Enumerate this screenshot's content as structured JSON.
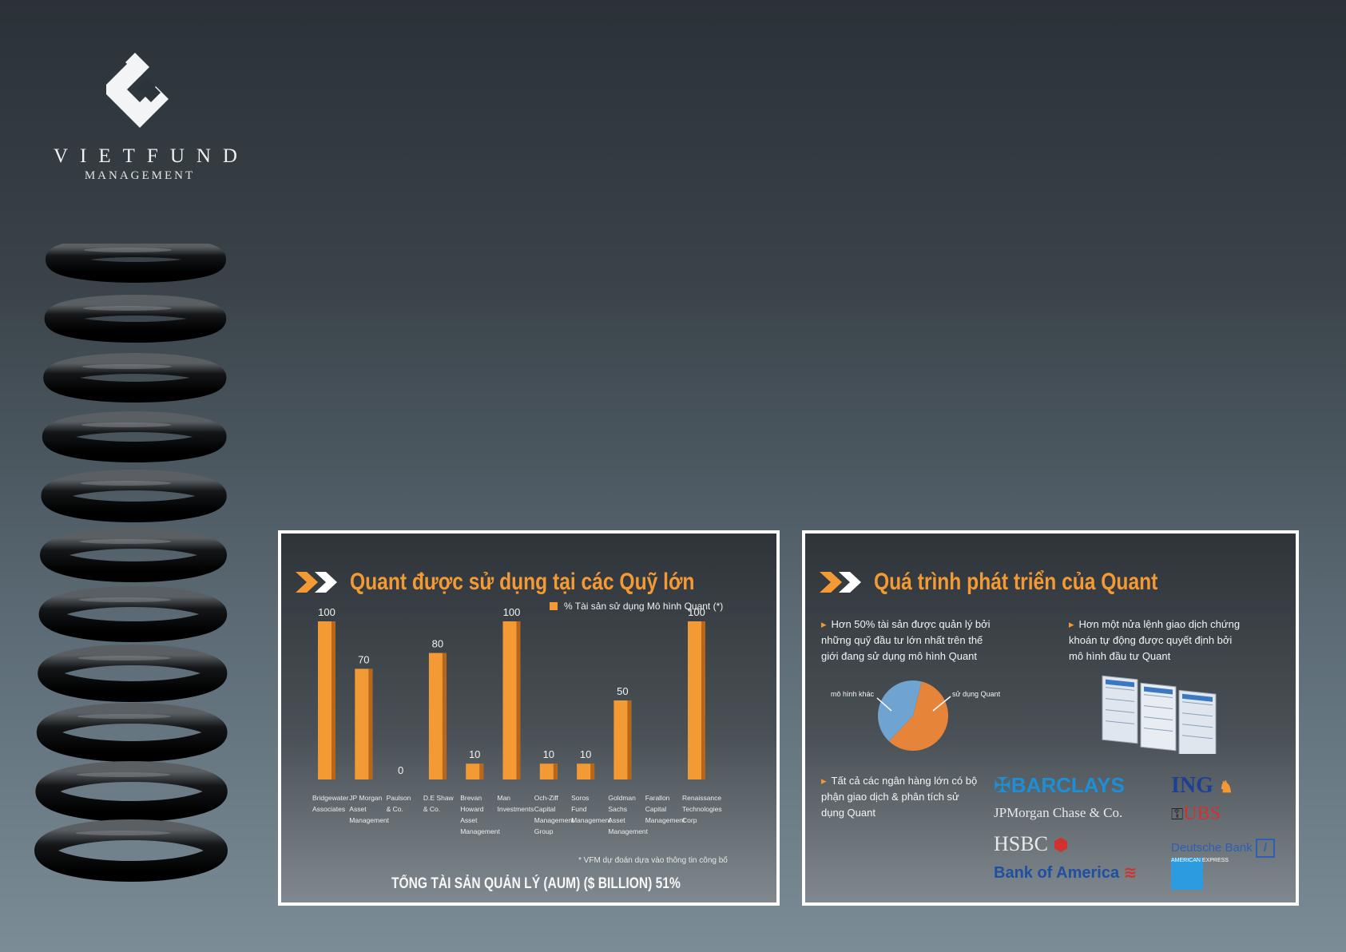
{
  "brand": {
    "name": "VIETFUND",
    "subtitle": "MANAGEMENT"
  },
  "left_panel": {
    "title": "Quant được sử dụng tại các Quỹ lớn",
    "legend": "% Tài sản sử dụng Mô hình Quant (*)",
    "footnote": "* VFM dự đoán dựa vào thông tin công bố",
    "total_label": "TỔNG TÀI SẢN QUẢN LÝ (AUM) ($ BILLION) 51%"
  },
  "chart_data": {
    "type": "bar",
    "categories": [
      [
        "Bridgewater",
        "Associates"
      ],
      [
        "JP Morgan",
        "Asset",
        "Management"
      ],
      [
        "Paulson",
        "& Co."
      ],
      [
        "D.E Shaw",
        "& Co."
      ],
      [
        "Brevan",
        "Howard",
        "Asset",
        "Management"
      ],
      [
        "Man",
        "Investments"
      ],
      [
        "Och-Ziff",
        "Capital",
        "Management",
        "Group"
      ],
      [
        "Soros",
        "Fund",
        "Management"
      ],
      [
        "Goldman",
        "Sachs",
        "Asset",
        "Management"
      ],
      [
        "Farallon",
        "Capital",
        "Management"
      ],
      [
        "Renaissance",
        "Technologies",
        "Corp"
      ]
    ],
    "values": [
      100,
      70,
      0,
      80,
      10,
      100,
      10,
      10,
      50,
      null,
      100
    ],
    "series": [
      {
        "name": "% Tài sản sử dụng Mô hình Quant (*)",
        "color": "#f39a34"
      }
    ],
    "ylim": [
      0,
      100
    ],
    "grid": false,
    "legend_position": "top-right"
  },
  "right_panel": {
    "title": "Quá trình phát triển của Quant",
    "bullet1": [
      "Hơn 50% tài sản được quản lý bởi",
      "những quỹ đầu tư lớn nhất trên thế",
      "giới đang sử dụng mô hình Quant"
    ],
    "bullet2": [
      "Hơn một nửa lệnh giao dịch chứng",
      "khoán tự động được quyết định bởi",
      "mô hình đầu tư Quant"
    ],
    "bullet3": [
      "Tất cả các ngân hàng lớn có bộ",
      "phận giao dịch & phân tích sử",
      "dụng Quant"
    ],
    "pie": {
      "label_other": "mô hình khác",
      "label_quant": "sử dụng Quant",
      "quant_share": 0.58,
      "color_other": "#6fa3d0",
      "color_quant": "#e6843a"
    },
    "banks": {
      "barclays": "BARCLAYS",
      "ing": "ING",
      "jpm": "JPMorgan Chase & Co.",
      "ubs": "UBS",
      "hsbc": "HSBC",
      "db": "Deutsche Bank",
      "boa": "Bank of America",
      "amex": "AMERICAN EXPRESS"
    }
  },
  "colors": {
    "accent": "#f39a34",
    "panel_border": "#ffffff"
  }
}
